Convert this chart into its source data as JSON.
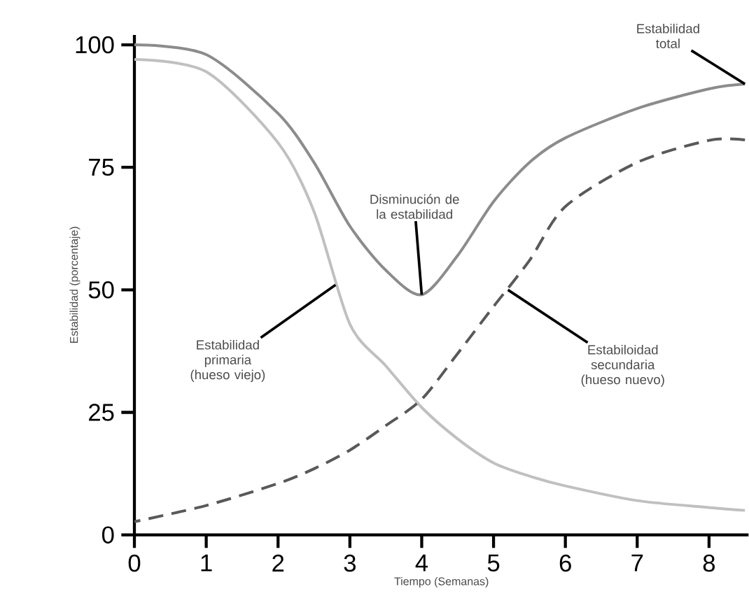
{
  "chart_data": {
    "type": "line",
    "xlabel": "Tiempo (Semanas)",
    "ylabel": "Estabilidad (porcentaje)",
    "xlim": [
      0,
      8.55
    ],
    "ylim": [
      0,
      102
    ],
    "xticks": [
      0,
      1,
      2,
      3,
      4,
      5,
      6,
      7,
      8
    ],
    "yticks": [
      0,
      25,
      50,
      75,
      100
    ],
    "marker": "none",
    "x": [
      0,
      1,
      2,
      2.5,
      3,
      3.5,
      4,
      4.5,
      5,
      5.5,
      6,
      7,
      8,
      8.5
    ],
    "series": [
      {
        "color": "#8c8c8c",
        "line_style": "solid",
        "values": [
          100,
          98,
          86,
          76,
          63,
          54,
          49,
          57,
          68,
          76,
          81,
          87,
          91,
          92
        ]
      },
      {
        "color": "#c0c0c0",
        "line_style": "solid",
        "values": [
          97,
          94.5,
          80,
          66,
          43,
          34.5,
          26,
          19.6,
          14.7,
          12,
          10,
          7,
          5.6,
          5
        ]
      },
      {
        "color": "#595959",
        "line_style": "dashed",
        "values": [
          2.7,
          6,
          10.5,
          13.5,
          17.3,
          22.3,
          27.7,
          37,
          46.6,
          56,
          67,
          76,
          80.5,
          80.6
        ]
      }
    ],
    "annotations": [
      {
        "text": "Estabilidad total",
        "x": 8.5,
        "y": 92
      },
      {
        "text": "Disminución de la estabilidad",
        "x": 4,
        "y": 49
      },
      {
        "text": "Estabilidad primaria (hueso viejo)",
        "x": 2.8,
        "y": 51
      },
      {
        "text": "Estabiloidad secundaria (hueso nuevo)",
        "x": 5.2,
        "y": 50
      }
    ]
  }
}
